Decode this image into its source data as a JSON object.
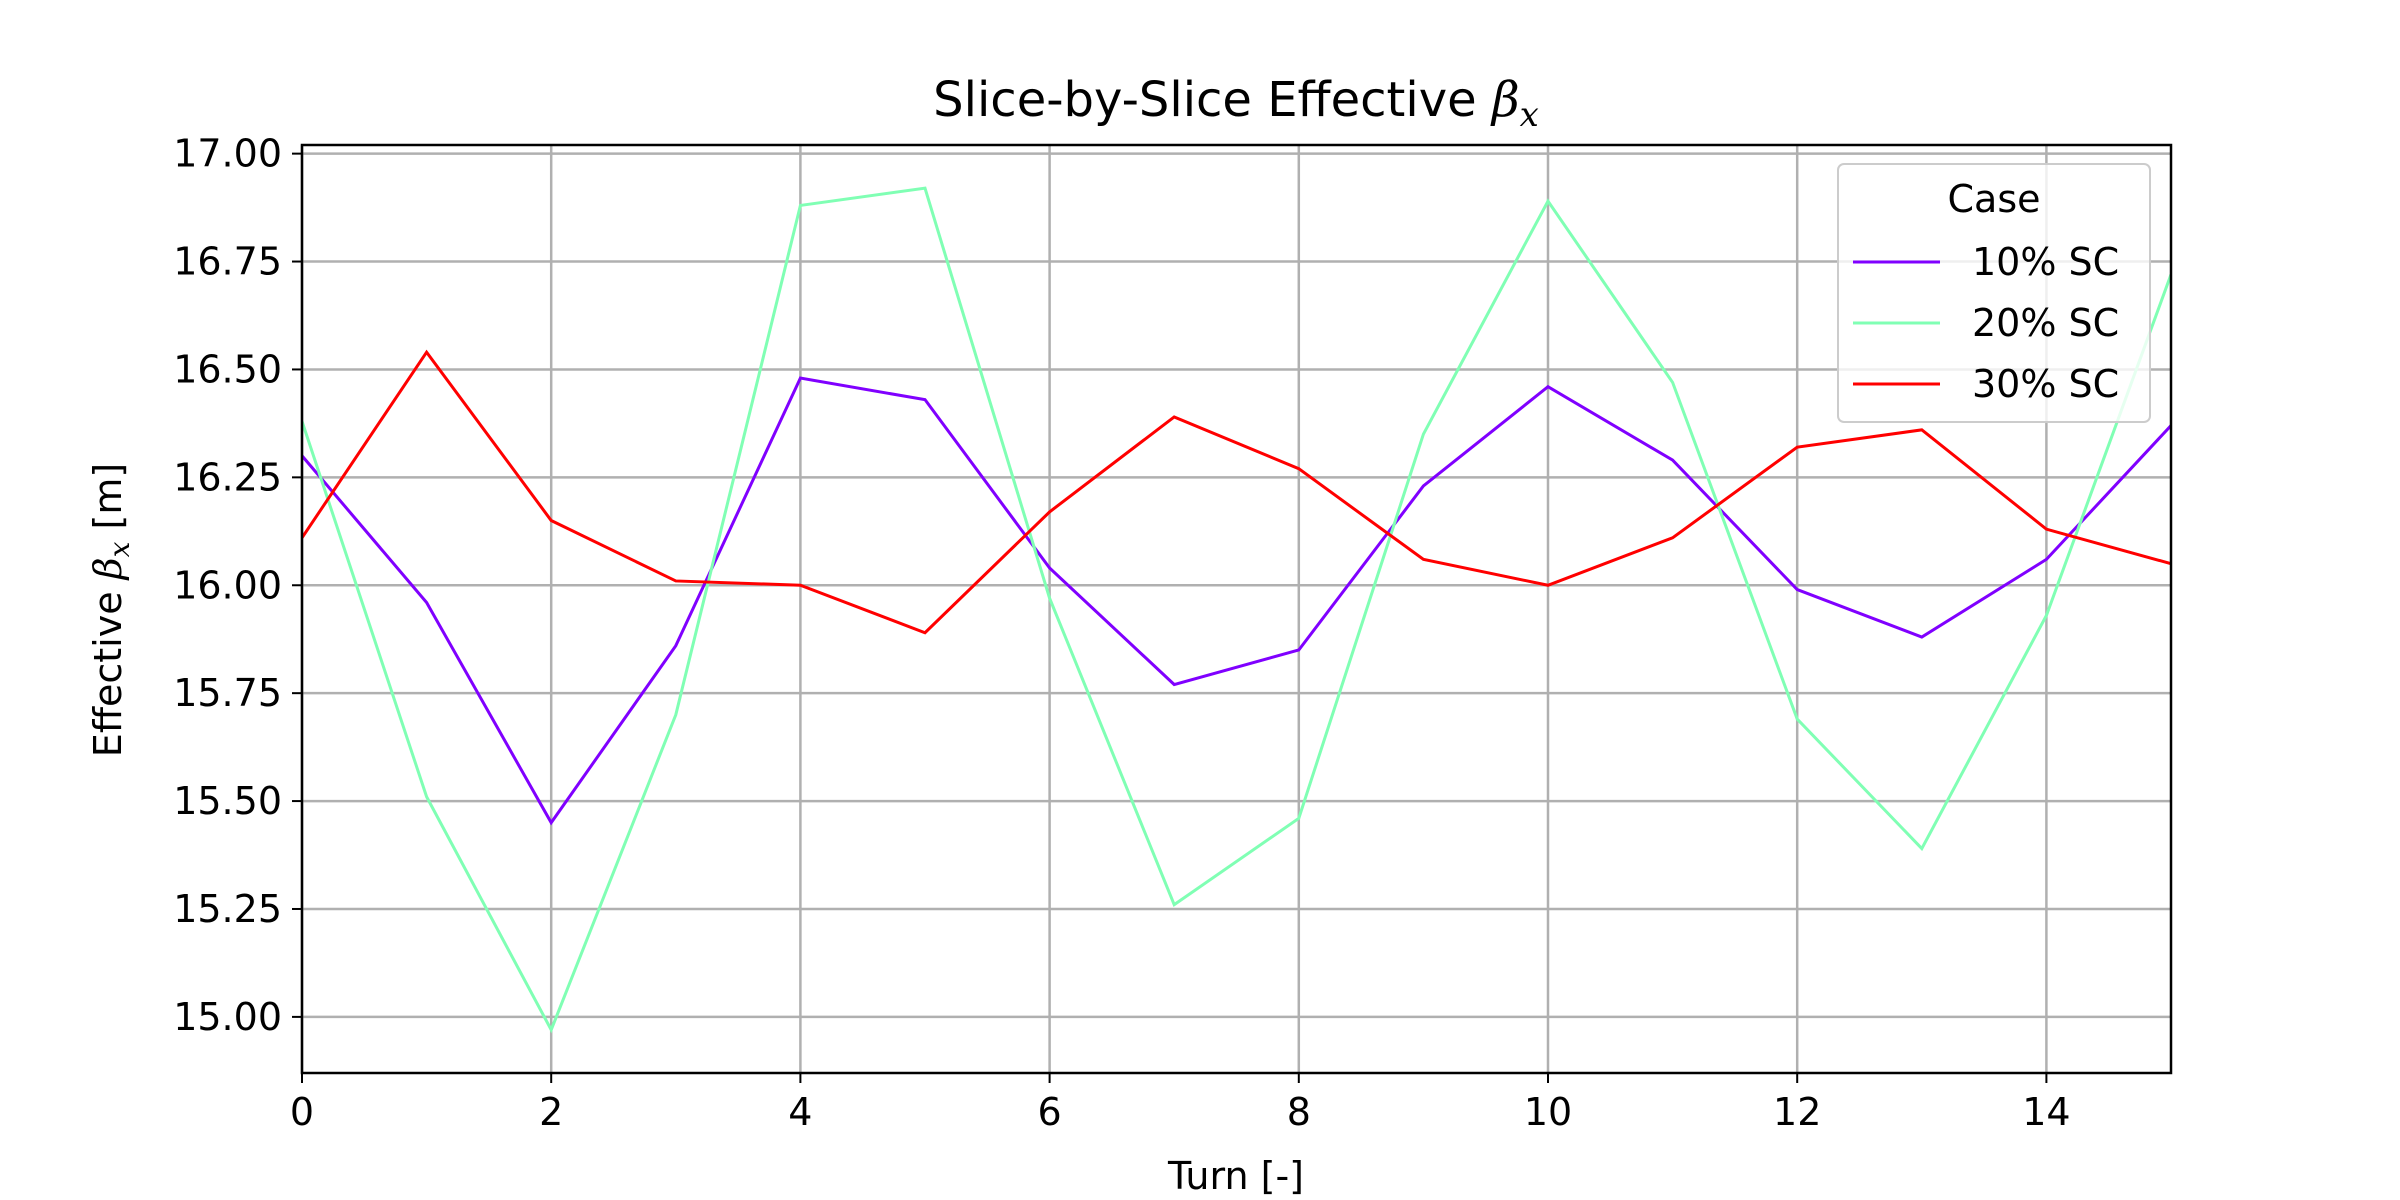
{
  "chart_data": {
    "type": "line",
    "title_prefix": "Slice-by-Slice Effective ",
    "title_symbol": "β",
    "title_subscript": "x",
    "xlabel": "Turn [-]",
    "ylabel_prefix": "Effective ",
    "ylabel_symbol": "β",
    "ylabel_subscript": "x",
    "ylabel_suffix": " [m]",
    "xlim": [
      0,
      15
    ],
    "ylim": [
      14.87,
      17.02
    ],
    "xticks": [
      0,
      2,
      4,
      6,
      8,
      10,
      12,
      14
    ],
    "xtick_labels": [
      "0",
      "2",
      "4",
      "6",
      "8",
      "10",
      "12",
      "14"
    ],
    "yticks": [
      15.0,
      15.25,
      15.5,
      15.75,
      16.0,
      16.25,
      16.5,
      16.75,
      17.0
    ],
    "ytick_labels": [
      "15.00",
      "15.25",
      "15.50",
      "15.75",
      "16.00",
      "16.25",
      "16.50",
      "16.75",
      "17.00"
    ],
    "grid": true,
    "legend": {
      "title": "Case",
      "placement": "top-right"
    },
    "x": [
      0,
      1,
      2,
      3,
      4,
      5,
      6,
      7,
      8,
      9,
      10,
      11,
      12,
      13,
      14,
      15
    ],
    "series": [
      {
        "name": "10% SC",
        "color": "#8000ff",
        "values": [
          16.3,
          15.96,
          15.45,
          15.86,
          16.48,
          16.43,
          16.04,
          15.77,
          15.85,
          16.23,
          16.46,
          16.29,
          15.99,
          15.88,
          16.06,
          16.37
        ]
      },
      {
        "name": "20% SC",
        "color": "#80ffb4",
        "values": [
          16.38,
          15.51,
          14.97,
          15.7,
          16.88,
          16.92,
          15.97,
          15.26,
          15.46,
          16.35,
          16.89,
          16.47,
          15.69,
          15.39,
          15.93,
          16.72
        ]
      },
      {
        "name": "30% SC",
        "color": "#ff0000",
        "values": [
          16.11,
          16.54,
          16.15,
          16.01,
          16.0,
          15.89,
          16.17,
          16.39,
          16.27,
          16.06,
          16.0,
          16.11,
          16.32,
          16.36,
          16.13,
          16.05
        ]
      }
    ]
  }
}
